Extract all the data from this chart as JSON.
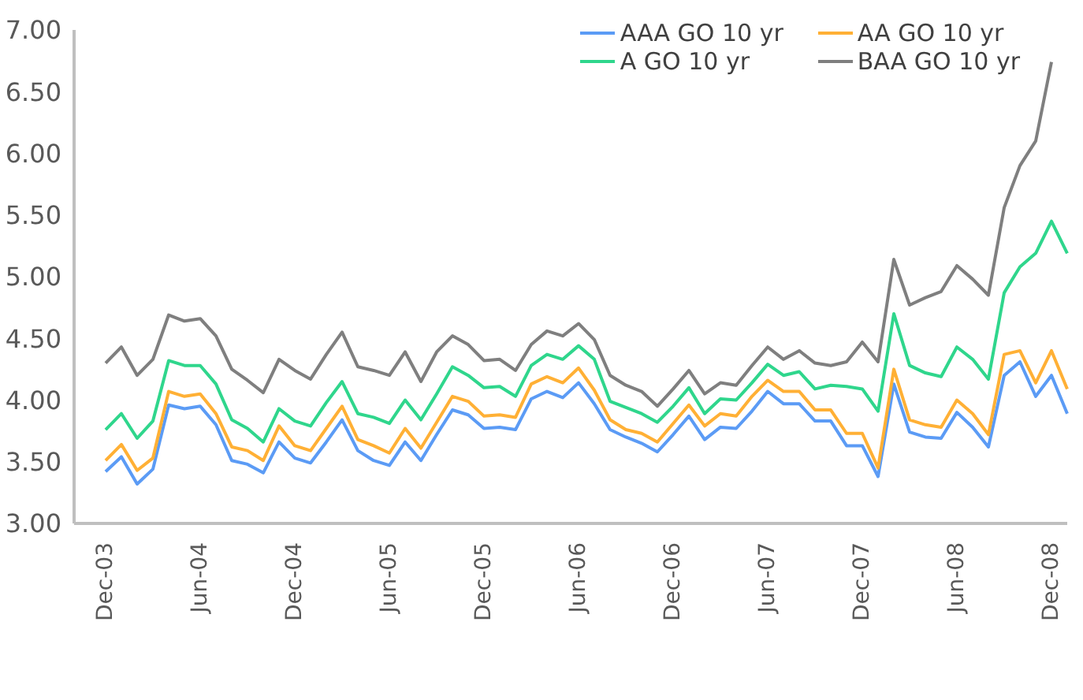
{
  "chart_data": {
    "type": "line",
    "categories": [
      "Dec-03",
      null,
      null,
      null,
      null,
      null,
      "Jun-04",
      null,
      null,
      null,
      null,
      null,
      "Dec-04",
      null,
      null,
      null,
      null,
      null,
      "Jun-05",
      null,
      null,
      null,
      null,
      null,
      "Dec-05",
      null,
      null,
      null,
      null,
      null,
      "Jun-06",
      null,
      null,
      null,
      null,
      null,
      "Dec-06",
      null,
      null,
      null,
      null,
      null,
      "Jun-07",
      null,
      null,
      null,
      null,
      null,
      "Dec-07",
      null,
      null,
      null,
      null,
      null,
      "Jun-08",
      null,
      null,
      null,
      null,
      null,
      "Dec-08",
      null
    ],
    "series": [
      {
        "name": "AAA GO 10 yr",
        "color": "#5b9bf5",
        "values": [
          3.42,
          3.54,
          3.32,
          3.44,
          3.96,
          3.93,
          3.95,
          3.8,
          3.51,
          3.48,
          3.41,
          3.66,
          3.53,
          3.49,
          3.66,
          3.84,
          3.59,
          3.51,
          3.47,
          3.66,
          3.51,
          3.72,
          3.92,
          3.88,
          3.77,
          3.78,
          3.76,
          4.01,
          4.07,
          4.02,
          4.14,
          3.97,
          3.76,
          3.7,
          3.65,
          3.58,
          3.72,
          3.87,
          3.68,
          3.78,
          3.77,
          3.91,
          4.07,
          3.97,
          3.97,
          3.83,
          3.83,
          3.63,
          3.63,
          3.38,
          4.13,
          3.74,
          3.7,
          3.69,
          3.9,
          3.78,
          3.62,
          4.2,
          4.31,
          4.03,
          4.2,
          3.89
        ]
      },
      {
        "name": "AA GO 10 yr",
        "color": "#ffb035",
        "values": [
          3.51,
          3.64,
          3.43,
          3.53,
          4.07,
          4.03,
          4.05,
          3.89,
          3.62,
          3.59,
          3.51,
          3.79,
          3.63,
          3.59,
          3.77,
          3.95,
          3.68,
          3.63,
          3.57,
          3.77,
          3.61,
          3.82,
          4.03,
          3.99,
          3.87,
          3.88,
          3.86,
          4.13,
          4.19,
          4.14,
          4.26,
          4.08,
          3.84,
          3.76,
          3.73,
          3.66,
          3.81,
          3.96,
          3.79,
          3.89,
          3.87,
          4.03,
          4.16,
          4.07,
          4.07,
          3.92,
          3.92,
          3.73,
          3.73,
          3.45,
          4.25,
          3.84,
          3.8,
          3.78,
          4.0,
          3.89,
          3.72,
          4.37,
          4.4,
          4.14,
          4.4,
          4.09
        ]
      },
      {
        "name": "A GO 10 yr",
        "color": "#2fd68c",
        "values": [
          3.76,
          3.89,
          3.69,
          3.83,
          4.32,
          4.28,
          4.28,
          4.13,
          3.84,
          3.77,
          3.66,
          3.93,
          3.83,
          3.79,
          3.98,
          4.15,
          3.89,
          3.86,
          3.81,
          4.0,
          3.84,
          4.05,
          4.27,
          4.2,
          4.1,
          4.11,
          4.03,
          4.28,
          4.37,
          4.33,
          4.44,
          4.33,
          3.99,
          3.94,
          3.89,
          3.82,
          3.95,
          4.1,
          3.89,
          4.01,
          4.0,
          4.14,
          4.29,
          4.2,
          4.23,
          4.09,
          4.12,
          4.11,
          4.09,
          3.91,
          4.7,
          4.28,
          4.22,
          4.19,
          4.43,
          4.33,
          4.17,
          4.87,
          5.08,
          5.19,
          5.45,
          5.19
        ]
      },
      {
        "name": "BAA GO 10 yr",
        "color": "#7f7f7f",
        "values": [
          4.3,
          4.43,
          4.2,
          4.33,
          4.69,
          4.64,
          4.66,
          4.52,
          4.25,
          4.16,
          4.06,
          4.33,
          4.24,
          4.17,
          4.37,
          4.55,
          4.27,
          4.24,
          4.2,
          4.39,
          4.15,
          4.39,
          4.52,
          4.45,
          4.32,
          4.33,
          4.24,
          4.45,
          4.56,
          4.52,
          4.62,
          4.49,
          4.2,
          4.12,
          4.07,
          3.95,
          4.09,
          4.24,
          4.05,
          4.14,
          4.12,
          4.28,
          4.43,
          4.33,
          4.4,
          4.3,
          4.28,
          4.31,
          4.47,
          4.31,
          5.14,
          4.77,
          4.83,
          4.88,
          5.09,
          4.98,
          4.85,
          5.56,
          5.9,
          6.1,
          6.74,
          null
        ]
      }
    ],
    "ylim": [
      3,
      7
    ],
    "yticks": [
      {
        "value": 3,
        "label": "3.00"
      },
      {
        "value": 3.5,
        "label": "3.50"
      },
      {
        "value": 4,
        "label": "4.00"
      },
      {
        "value": 4.5,
        "label": "4.50"
      },
      {
        "value": 5,
        "label": "5.00"
      },
      {
        "value": 5.5,
        "label": "5.50"
      },
      {
        "value": 6,
        "label": "6.00"
      },
      {
        "value": 6.5,
        "label": "6.50"
      },
      {
        "value": 7,
        "label": "7.00"
      }
    ],
    "legend": "top right",
    "marker": "none",
    "line_style": "solid"
  }
}
